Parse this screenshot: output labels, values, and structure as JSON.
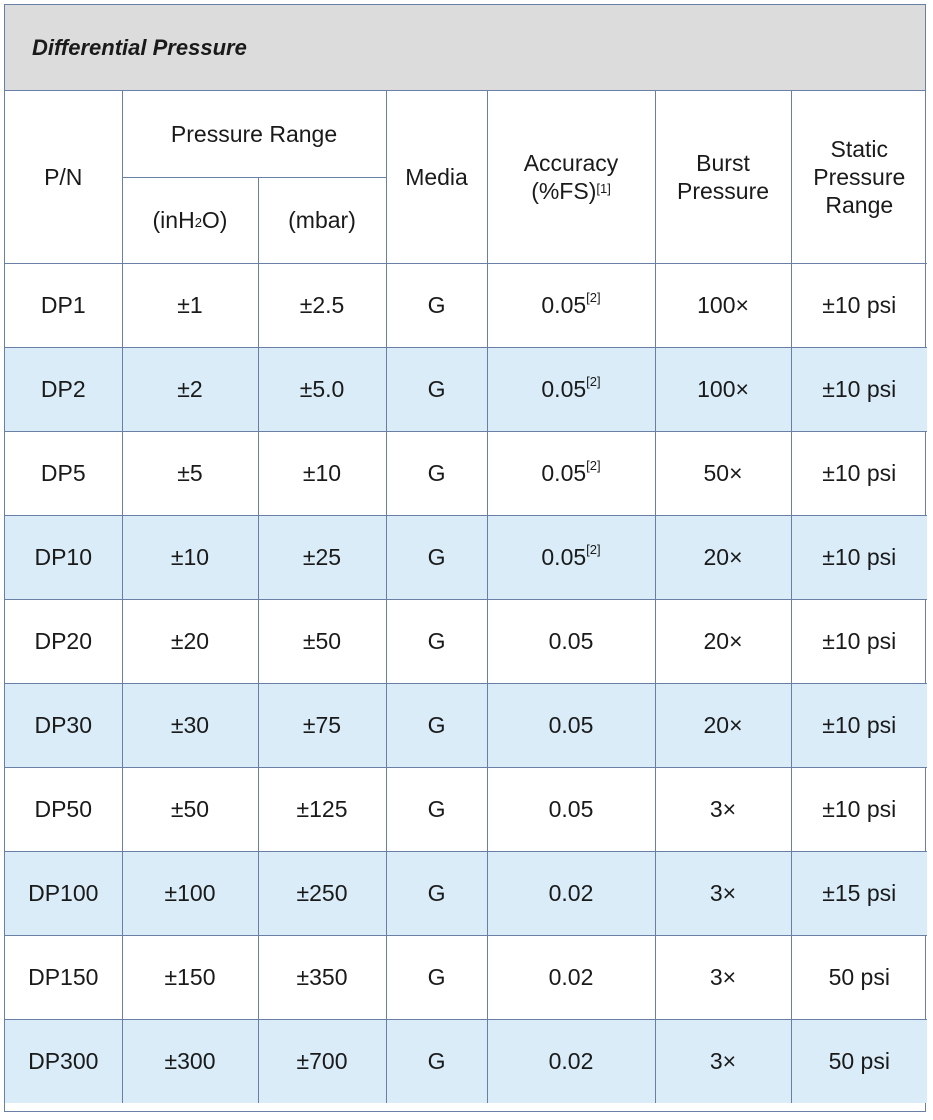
{
  "title": "Differential Pressure",
  "headers": {
    "pn": "P/N",
    "pressure_range": "Pressure Range",
    "inh2o_pre": "(inH",
    "inh2o_sub": "2",
    "inh2o_post": "O)",
    "mbar": "(mbar)",
    "media": "Media",
    "accuracy_line1": "Accuracy",
    "accuracy_line2": "(%FS)",
    "accuracy_note": "[1]",
    "burst_line1": "Burst",
    "burst_line2": "Pressure",
    "static_line1": "Static",
    "static_line2": "Pressure",
    "static_line3": "Range"
  },
  "rows": [
    {
      "pn": "DP1",
      "inh2o": "±1",
      "mbar": "±2.5",
      "media": "G",
      "accuracy": "0.05",
      "note": "[2]",
      "burst": "100×",
      "static": "±10 psi"
    },
    {
      "pn": "DP2",
      "inh2o": "±2",
      "mbar": "±5.0",
      "media": "G",
      "accuracy": "0.05",
      "note": "[2]",
      "burst": "100×",
      "static": "±10 psi"
    },
    {
      "pn": "DP5",
      "inh2o": "±5",
      "mbar": "±10",
      "media": "G",
      "accuracy": "0.05",
      "note": "[2]",
      "burst": "50×",
      "static": "±10 psi"
    },
    {
      "pn": "DP10",
      "inh2o": "±10",
      "mbar": "±25",
      "media": "G",
      "accuracy": "0.05",
      "note": "[2]",
      "burst": "20×",
      "static": "±10 psi"
    },
    {
      "pn": "DP20",
      "inh2o": "±20",
      "mbar": "±50",
      "media": "G",
      "accuracy": "0.05",
      "note": "",
      "burst": "20×",
      "static": "±10 psi"
    },
    {
      "pn": "DP30",
      "inh2o": "±30",
      "mbar": "±75",
      "media": "G",
      "accuracy": "0.05",
      "note": "",
      "burst": "20×",
      "static": "±10 psi"
    },
    {
      "pn": "DP50",
      "inh2o": "±50",
      "mbar": "±125",
      "media": "G",
      "accuracy": "0.05",
      "note": "",
      "burst": "3×",
      "static": "±10 psi"
    },
    {
      "pn": "DP100",
      "inh2o": "±100",
      "mbar": "±250",
      "media": "G",
      "accuracy": "0.02",
      "note": "",
      "burst": "3×",
      "static": "±15 psi"
    },
    {
      "pn": "DP150",
      "inh2o": "±150",
      "mbar": "±350",
      "media": "G",
      "accuracy": "0.02",
      "note": "",
      "burst": "3×",
      "static": "50 psi"
    },
    {
      "pn": "DP300",
      "inh2o": "±300",
      "mbar": "±700",
      "media": "G",
      "accuracy": "0.02",
      "note": "",
      "burst": "3×",
      "static": "50 psi"
    }
  ]
}
